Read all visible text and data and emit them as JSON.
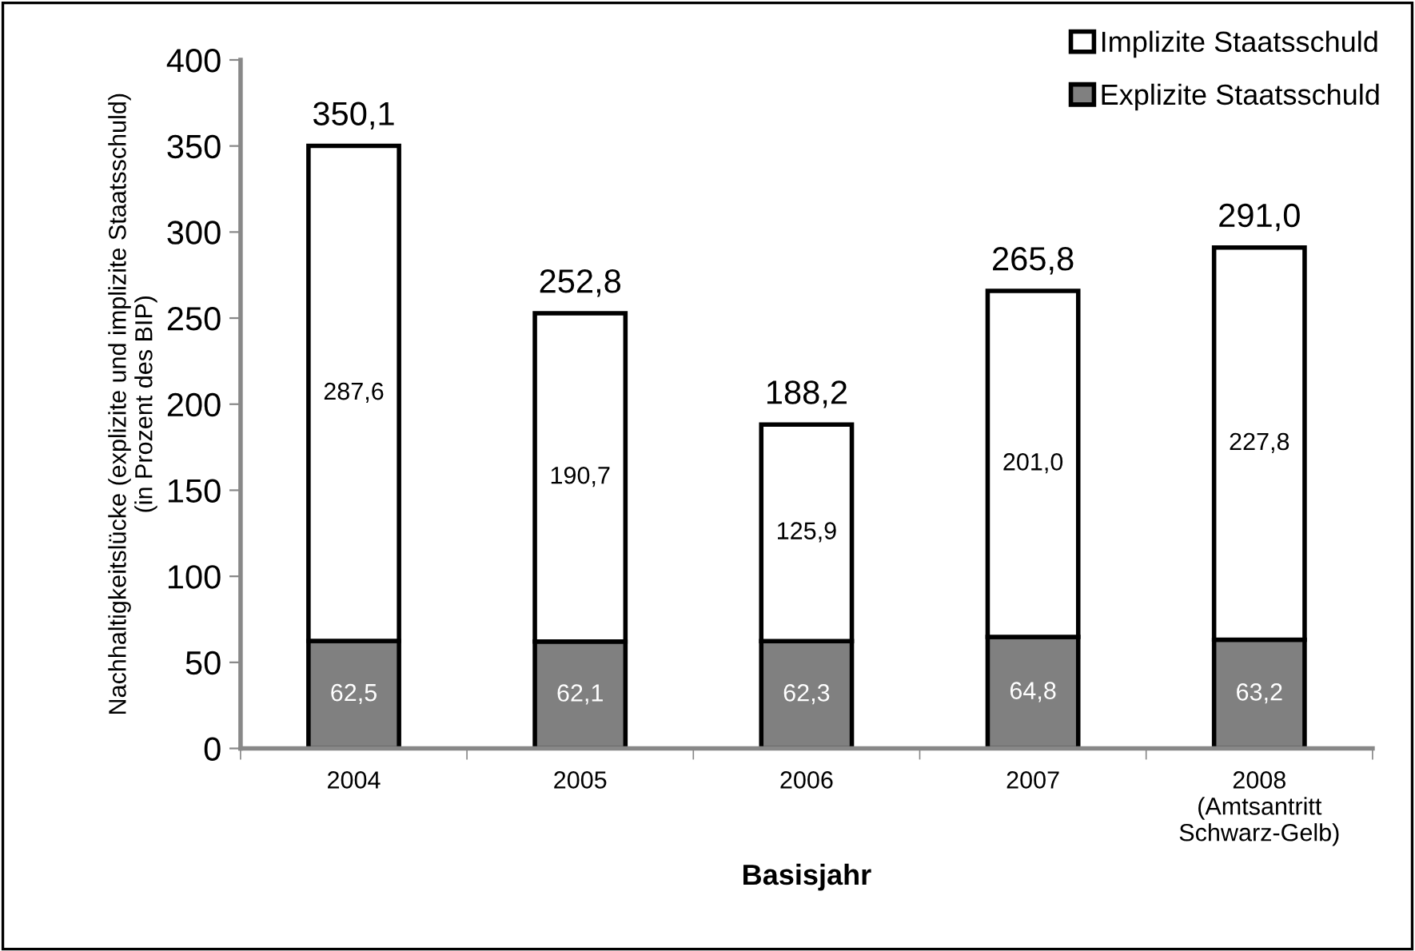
{
  "chart_data": {
    "type": "bar",
    "stacked": true,
    "xlabel": "Basisjahr",
    "ylabel": "Nachhaltigkeitslücke (explizite und implizite Staatsschuld)\n(in Prozent des BIP)",
    "categories": [
      "2004",
      "2005",
      "2006",
      "2007",
      "2008\n(Amtsantritt\nSchwarz-Gelb)"
    ],
    "series": [
      {
        "name": "Explizite Staatsschuld",
        "color": "#808080",
        "values": [
          62.5,
          62.1,
          62.3,
          64.8,
          63.2
        ],
        "value_labels": [
          "62,5",
          "62,1",
          "62,3",
          "64,8",
          "63,2"
        ]
      },
      {
        "name": "Implizite Staatsschuld",
        "color": "#ffffff",
        "values": [
          287.6,
          190.7,
          125.9,
          201.0,
          227.8
        ],
        "value_labels": [
          "287,6",
          "190,7",
          "125,9",
          "201,0",
          "227,8"
        ]
      }
    ],
    "totals": [
      "350,1",
      "252,8",
      "188,2",
      "265,8",
      "291,0"
    ],
    "ylim": [
      0,
      400
    ],
    "yticks": [
      0,
      50,
      100,
      150,
      200,
      250,
      300,
      350,
      400
    ],
    "grid": false,
    "legend": "top right"
  }
}
